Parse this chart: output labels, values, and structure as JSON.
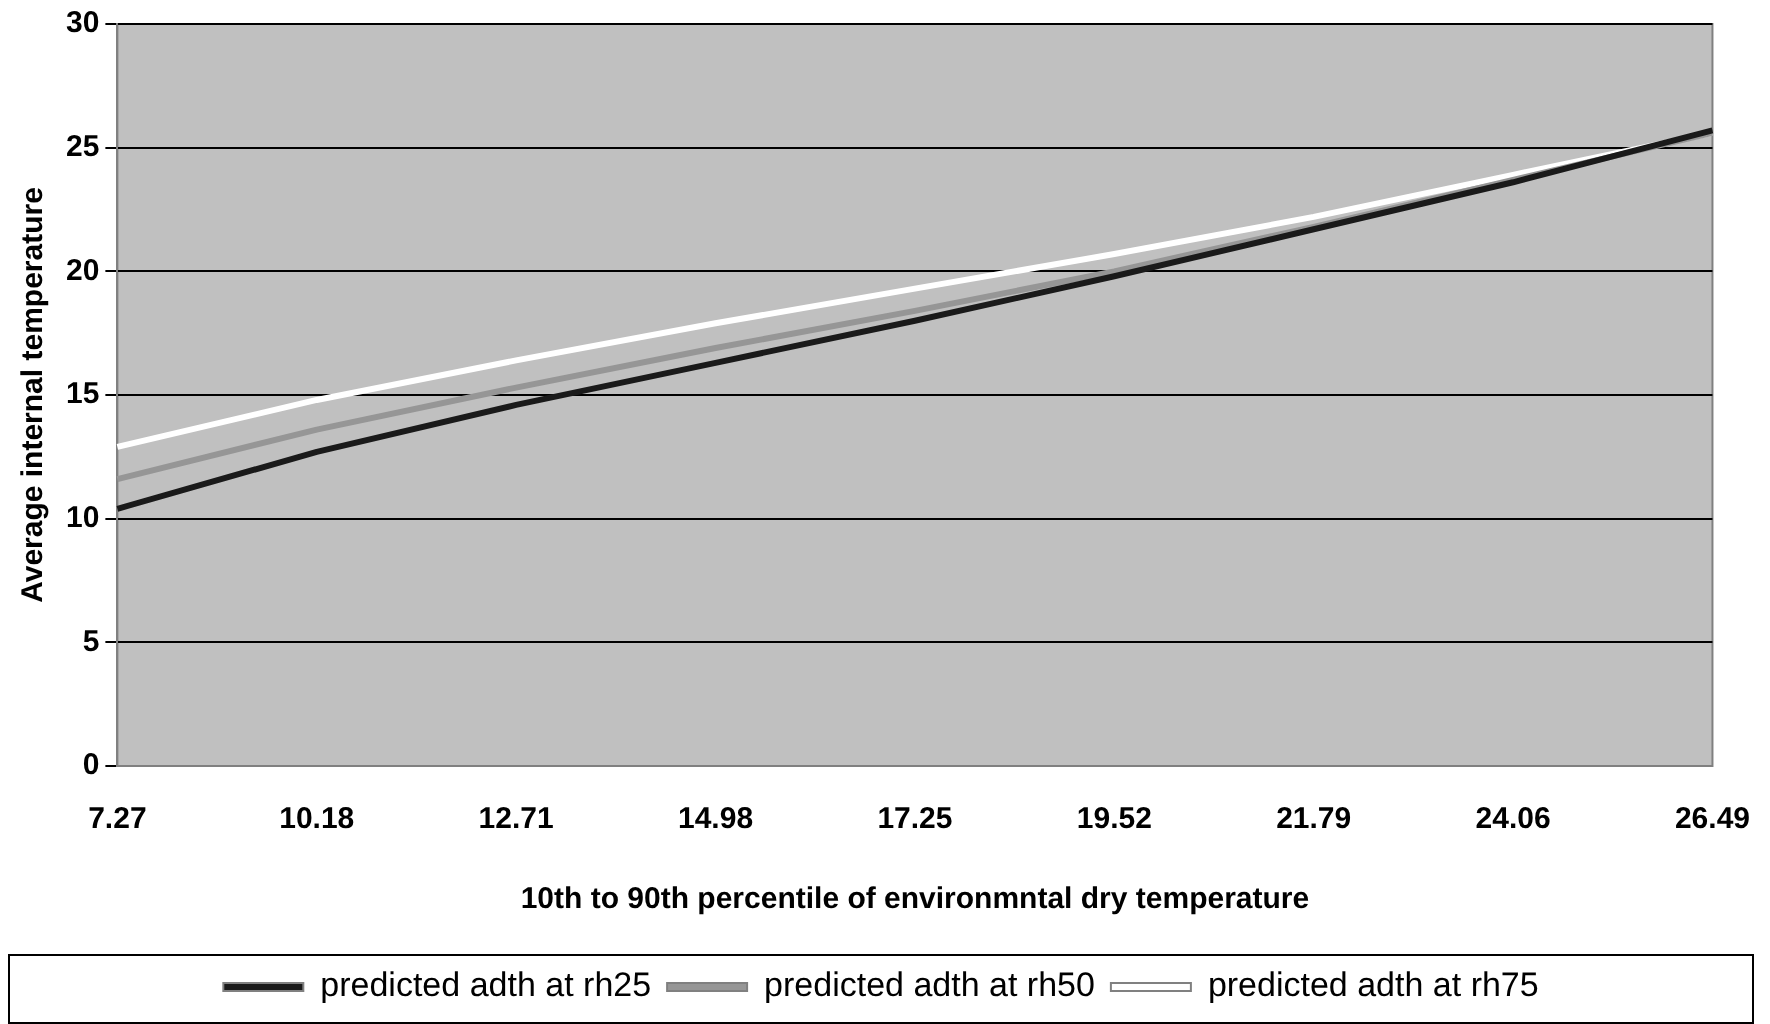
{
  "chart_data": {
    "type": "line",
    "xlabel": "10th to 90th percentile of environmntal dry temperature",
    "ylabel": "Average internal temperature",
    "categories": [
      "7.27",
      "10.18",
      "12.71",
      "14.98",
      "17.25",
      "19.52",
      "21.79",
      "24.06",
      "26.49"
    ],
    "series": [
      {
        "name": "predicted adth at rh25",
        "color": "#1a1a1a",
        "values": [
          10.4,
          12.7,
          14.6,
          16.3,
          18.0,
          19.8,
          21.7,
          23.6,
          25.7
        ]
      },
      {
        "name": "predicted adth at rh50",
        "color": "#969696",
        "values": [
          11.6,
          13.6,
          15.3,
          16.9,
          18.4,
          20.0,
          21.8,
          23.7,
          25.6
        ]
      },
      {
        "name": "predicted adth at rh75",
        "color": "#ffffff",
        "values": [
          12.9,
          14.8,
          16.4,
          17.9,
          19.3,
          20.7,
          22.2,
          23.9,
          25.6
        ]
      }
    ],
    "ylim": [
      0,
      30
    ],
    "yticks": [
      0,
      5,
      10,
      15,
      20,
      25,
      30
    ],
    "grid": "y",
    "legend": "bottom",
    "marker": "none",
    "line_style": "solid"
  }
}
